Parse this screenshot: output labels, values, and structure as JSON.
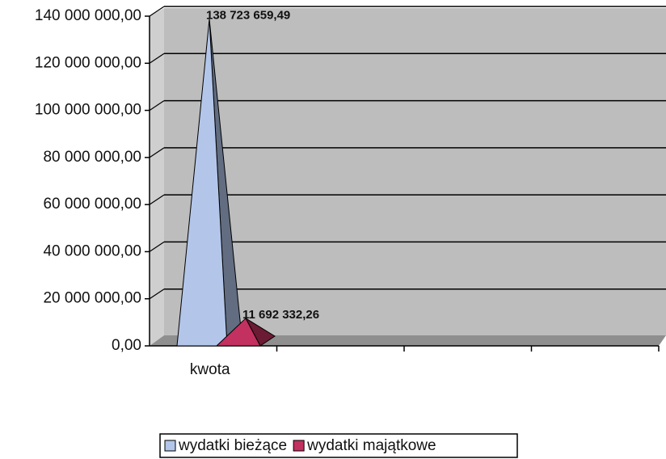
{
  "chart_data": {
    "type": "pyramid3d",
    "categories": [
      "kwota",
      null,
      null,
      null
    ],
    "series": [
      {
        "name": "wydatki bieżące",
        "color": "#b3c6ea",
        "values": [
          138723659.49,
          null,
          null,
          null
        ],
        "value_labels": [
          "138 723 659,49",
          null,
          null,
          null
        ]
      },
      {
        "name": "wydatki majątkowe",
        "color": "#c2315f",
        "values": [
          11692332.26,
          null,
          null,
          null
        ],
        "value_labels": [
          "11 692 332,26",
          null,
          null,
          null
        ]
      }
    ],
    "ylim": [
      0,
      140000000
    ],
    "yticks": [
      {
        "value": 0,
        "label": "0,00"
      },
      {
        "value": 20000000,
        "label": "20 000 000,00"
      },
      {
        "value": 40000000,
        "label": "40 000 000,00"
      },
      {
        "value": 60000000,
        "label": "60 000 000,00"
      },
      {
        "value": 80000000,
        "label": "80 000 000,00"
      },
      {
        "value": 100000000,
        "label": "100 000 000,00"
      },
      {
        "value": 120000000,
        "label": "120 000 000,00"
      },
      {
        "value": 140000000,
        "label": "140 000 000,00"
      }
    ],
    "grid": true,
    "legend": "bottom"
  }
}
